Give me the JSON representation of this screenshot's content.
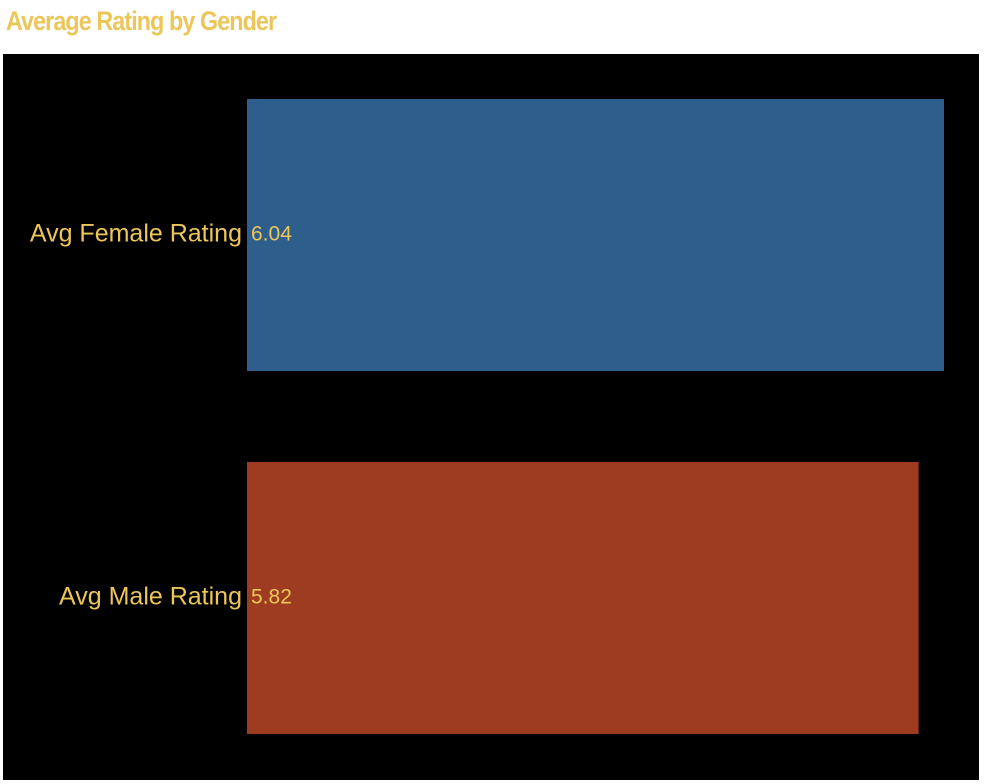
{
  "page": {
    "background": "#ffffff",
    "panel_background": "#000000",
    "text_color": "#ECC659"
  },
  "chart_data": {
    "type": "bar",
    "orientation": "horizontal",
    "title": "Average Rating by Gender",
    "categories": [
      "Avg Female Rating",
      "Avg Male Rating"
    ],
    "values": [
      6.04,
      5.82
    ],
    "value_labels": [
      "6.04",
      "5.82"
    ],
    "colors": [
      "#2D5E8C",
      "#9E3C22"
    ],
    "xlim": [
      0,
      6.04
    ],
    "xlabel": "",
    "ylabel": "",
    "grid": false,
    "legend": "none"
  }
}
